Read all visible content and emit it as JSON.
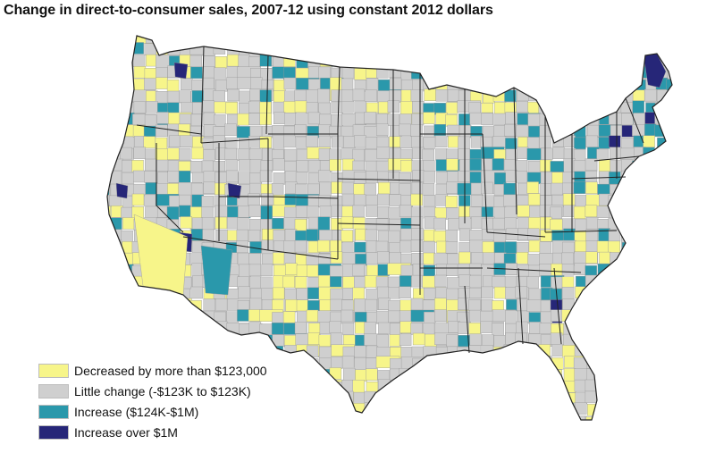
{
  "title": "Change in direct-to-consumer sales, 2007-12 using constant 2012 dollars",
  "legend": {
    "items": [
      {
        "label": "Decreased by more than $123,000",
        "color": "#f7f58a"
      },
      {
        "label": "Little change (-$123K to $123K)",
        "color": "#cfcfcf"
      },
      {
        "label": "Increase ($124K-$1M)",
        "color": "#2a98ab"
      },
      {
        "label": "Increase over $1M",
        "color": "#262678"
      }
    ]
  },
  "colors": {
    "background": "#ffffff",
    "state_border": "#222222",
    "county_border": "#9a9a9a"
  },
  "map": {
    "type": "county choropleth",
    "region": "Contiguous United States"
  }
}
